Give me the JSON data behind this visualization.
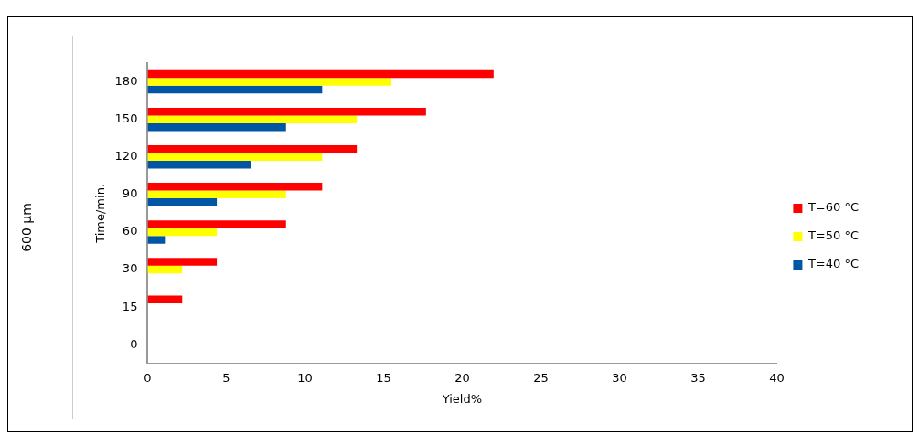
{
  "chart_data": {
    "type": "bar",
    "orientation": "horizontal",
    "xlabel": "Yield%",
    "ylabel": "Time/min.",
    "annotations": [
      "600 μm"
    ],
    "categories": [
      "180",
      "150",
      "120",
      "90",
      "60",
      "30",
      "15",
      "0"
    ],
    "series": [
      {
        "name": "T=60 °C",
        "color": "#ff0000",
        "values": [
          22,
          17.7,
          13.3,
          11.1,
          8.8,
          4.4,
          2.2,
          null
        ]
      },
      {
        "name": "T=50 °C",
        "color": "#ffff00",
        "values": [
          15.5,
          13.3,
          11.1,
          8.8,
          4.4,
          2.2,
          null,
          null
        ]
      },
      {
        "name": "T=40 °C",
        "color": "#0055a5",
        "values": [
          11.1,
          8.8,
          6.6,
          4.4,
          1.1,
          null,
          null,
          null
        ]
      }
    ],
    "xlim": [
      0,
      40
    ],
    "xticks": [
      0,
      5,
      10,
      15,
      20,
      25,
      30,
      35,
      40
    ],
    "grid": false,
    "legend": "right"
  }
}
